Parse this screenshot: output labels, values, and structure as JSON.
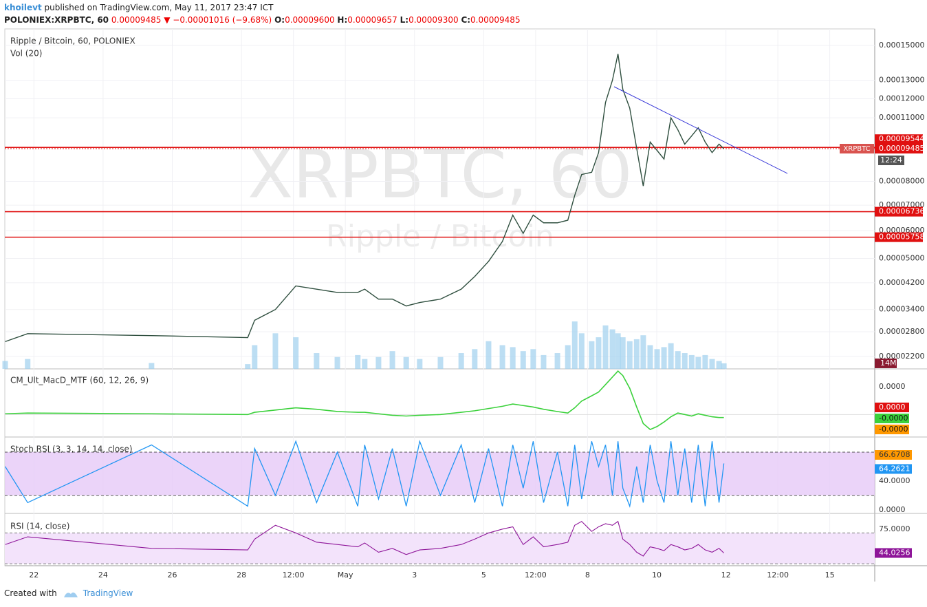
{
  "header": {
    "line1": {
      "user": "khoilevt",
      "rest": "published on TradingView.com, May 11, 2017 23:47 ICT"
    },
    "symbol": "POLONIEX:XRPBTC, 60",
    "price": "0.00009485",
    "arrow": "▼",
    "change": "−0.00001016 (−9.68%)",
    "ohlc": [
      {
        "k": "O:",
        "v": "0.00009600"
      },
      {
        "k": "H:",
        "v": "0.00009657"
      },
      {
        "k": "L:",
        "v": "0.00009300"
      },
      {
        "k": "C:",
        "v": "0.00009485"
      }
    ]
  },
  "chart": {
    "type": "line",
    "title": "Ripple / Bitcoin, 60, POLONIEX",
    "watermark": [
      "XRPBTC, 60",
      "Ripple / Bitcoin"
    ],
    "xlim": [
      -0.84,
      24.3
    ],
    "xticks": [
      {
        "value": 0,
        "label": "22"
      },
      {
        "value": 2,
        "label": "24"
      },
      {
        "value": 4,
        "label": "26"
      },
      {
        "value": 6,
        "label": "28"
      },
      {
        "value": 7.5,
        "label": "12:00"
      },
      {
        "value": 9,
        "label": "May"
      },
      {
        "value": 11,
        "label": "3"
      },
      {
        "value": 13,
        "label": "5"
      },
      {
        "value": 14.5,
        "label": "12:00"
      },
      {
        "value": 16,
        "label": "8"
      },
      {
        "value": 18,
        "label": "10"
      },
      {
        "value": 20,
        "label": "12"
      },
      {
        "value": 21.5,
        "label": "12:00"
      },
      {
        "value": 23,
        "label": "15"
      }
    ],
    "x": [
      -0.83,
      -0.18,
      3.4,
      6.18,
      6.38,
      6.98,
      7.57,
      8.17,
      8.77,
      9.36,
      9.56,
      9.96,
      10.36,
      10.76,
      11.15,
      11.75,
      12.35,
      12.74,
      13.14,
      13.54,
      13.84,
      14.14,
      14.43,
      14.73,
      15.13,
      15.43,
      15.63,
      15.83,
      16.12,
      16.32,
      16.52,
      16.72,
      16.88,
      17.02,
      17.22,
      17.42,
      17.61,
      17.81,
      18.01,
      18.21,
      18.41,
      18.61,
      18.81,
      19.01,
      19.2,
      19.4,
      19.6,
      19.8,
      19.94
    ],
    "price": {
      "yscale": "sqrt",
      "color": "#2f4f3f",
      "ylim": [
        1.925e-05,
        0.00016
      ],
      "yticks": [
        {
          "value": 0.00015,
          "label": "0.00015000"
        },
        {
          "value": 0.00013,
          "label": "0.00013000"
        },
        {
          "value": 0.00012,
          "label": "0.00012000"
        },
        {
          "value": 0.00011,
          "label": "0.00011000"
        },
        {
          "value": 8e-05,
          "label": "0.00008000"
        },
        {
          "value": 7e-05,
          "label": "0.00007000"
        },
        {
          "value": 6e-05,
          "label": "0.00006000"
        },
        {
          "value": 5e-05,
          "label": "0.00005000"
        },
        {
          "value": 4.2e-05,
          "label": "0.00004200"
        },
        {
          "value": 3.4e-05,
          "label": "0.00003400"
        },
        {
          "value": 2.8e-05,
          "label": "0.00002800"
        },
        {
          "value": 2.2e-05,
          "label": "0.00002200"
        }
      ],
      "values": [
        2.55e-05,
        2.75e-05,
        2.7e-05,
        2.65e-05,
        3.1e-05,
        3.4e-05,
        4.1e-05,
        4e-05,
        3.9e-05,
        3.9e-05,
        4e-05,
        3.7e-05,
        3.7e-05,
        3.5e-05,
        3.6e-05,
        3.7e-05,
        4e-05,
        4.4e-05,
        4.9e-05,
        5.6e-05,
        6.6e-05,
        5.9e-05,
        6.6e-05,
        6.3e-05,
        6.3e-05,
        6.4e-05,
        7.4e-05,
        8.3e-05,
        8.4e-05,
        9.3e-05,
        0.000118,
        0.00013,
        0.000145,
        0.000125,
        0.000115,
        9.5e-05,
        7.8e-05,
        9.8e-05,
        9.4e-05,
        9e-05,
        0.00011,
        0.000104,
        9.7e-05,
        0.000101,
        0.000105,
        9.8e-05,
        9.3e-05,
        9.7e-05,
        9.48e-05
      ],
      "levels": [
        {
          "value": 9.544e-05,
          "label": "0.00009544"
        },
        {
          "value": 6.736e-05,
          "label": "0.00006736"
        },
        {
          "value": 5.758e-05,
          "label": "0.00005758"
        }
      ],
      "current": {
        "value": 9.485e-05,
        "label": "0.00009485",
        "tag": "XRPBTC",
        "countdown": "12:24"
      }
    },
    "volume": {
      "title": "Vol (20)",
      "color": "#9fd0ee",
      "ylim": [
        0,
        860
      ],
      "values": [
        20,
        25,
        15,
        12,
        60,
        90,
        80,
        40,
        30,
        35,
        25,
        30,
        45,
        30,
        25,
        30,
        40,
        50,
        70,
        60,
        55,
        45,
        50,
        35,
        40,
        60,
        120,
        90,
        70,
        80,
        110,
        100,
        90,
        80,
        70,
        75,
        85,
        60,
        50,
        55,
        65,
        45,
        40,
        35,
        30,
        35,
        25,
        20,
        14
      ],
      "last": {
        "value": 14,
        "label": "14M"
      }
    },
    "macd": {
      "title": "CM_Ult_MacD_MTF (60, 12, 26, 9)",
      "color": "#3bd13b",
      "ylim": [
        -3e-06,
        6e-06
      ],
      "values": [
        1e-07,
        2e-07,
        1e-07,
        0,
        3e-07,
        6e-07,
        9e-07,
        7e-07,
        4e-07,
        3e-07,
        3e-07,
        1e-07,
        -1e-07,
        -2e-07,
        -1e-07,
        0,
        3e-07,
        5e-07,
        8e-07,
        1.1e-06,
        1.4e-06,
        1.2e-06,
        1e-06,
        7e-07,
        4e-07,
        2e-07,
        9e-07,
        1.8e-06,
        2.5e-06,
        3e-06,
        4e-06,
        5e-06,
        5.8e-06,
        5.2e-06,
        3.5e-06,
        1e-06,
        -1.2e-06,
        -2e-06,
        -1.6e-06,
        -1e-06,
        -3e-07,
        2e-07,
        0,
        -2e-07,
        1e-07,
        -1e-07,
        -3e-07,
        -4e-07,
        -4e-07
      ],
      "labels": [
        "0.0000",
        "0.0000",
        "-0.0000",
        "-0.0000"
      ]
    },
    "stoch": {
      "title": "Stoch RSI (3, 3, 14, 14, close)",
      "color": "#2196f3",
      "ylim": [
        -5,
        100
      ],
      "bands": [
        80,
        20
      ],
      "yticks": [
        {
          "value": 40,
          "label": "40.0000"
        },
        {
          "value": 0,
          "label": "0.0000"
        }
      ],
      "values": [
        60,
        10,
        90,
        5,
        85,
        20,
        95,
        10,
        80,
        5,
        90,
        15,
        85,
        5,
        95,
        20,
        90,
        10,
        85,
        5,
        90,
        30,
        95,
        10,
        80,
        5,
        90,
        15,
        95,
        60,
        90,
        20,
        95,
        30,
        5,
        60,
        10,
        90,
        40,
        10,
        95,
        20,
        85,
        10,
        90,
        5,
        95,
        10,
        64.2621
      ],
      "d_last": "66.6708"
    },
    "rsi": {
      "title": "RSI (14, close)",
      "color": "#8e1599",
      "ylim": [
        27.5,
        94.5
      ],
      "bands": [
        70,
        30
      ],
      "yticks": [
        {
          "value": 75,
          "label": "75.0000"
        }
      ],
      "values": [
        55,
        65,
        50,
        48,
        62,
        80,
        70,
        58,
        55,
        52,
        57,
        45,
        50,
        42,
        48,
        50,
        55,
        62,
        70,
        75,
        78,
        55,
        65,
        52,
        55,
        58,
        80,
        85,
        72,
        78,
        82,
        80,
        85,
        62,
        55,
        45,
        40,
        52,
        50,
        47,
        55,
        52,
        48,
        50,
        55,
        48,
        45,
        50,
        44.0256
      ]
    }
  },
  "footer": {
    "created": "Created with",
    "brand": "TradingView"
  }
}
